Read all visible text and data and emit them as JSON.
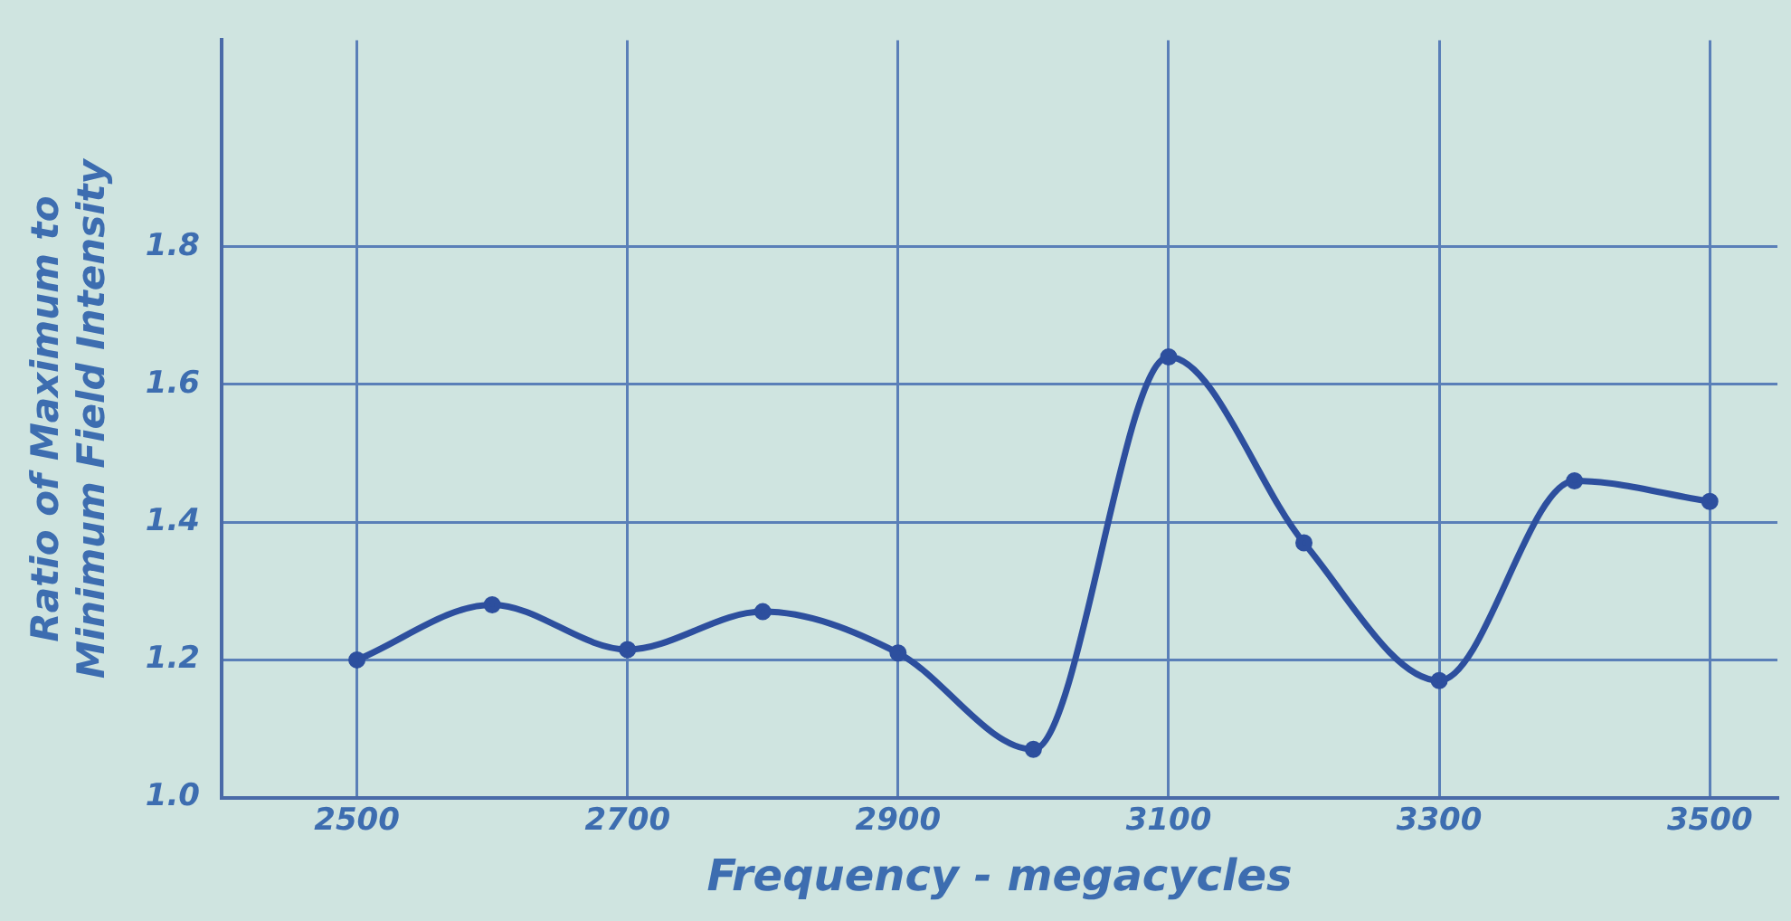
{
  "chart_data": {
    "type": "line",
    "xlabel": "Frequency - megacycles",
    "ylabel": "Ratio of Maximum to\nMinimum Field Intensity",
    "x": [
      2500,
      2600,
      2700,
      2800,
      2900,
      3000,
      3100,
      3200,
      3300,
      3400,
      3500
    ],
    "series": [
      {
        "color": "#2d4f9e",
        "values": [
          1.2,
          1.28,
          1.215,
          1.27,
          1.21,
          1.07,
          1.64,
          1.37,
          1.17,
          1.46,
          1.43
        ]
      }
    ],
    "xlim": [
      2400,
      3550
    ],
    "xticks": [
      2500,
      2700,
      2900,
      3100,
      3300,
      3500
    ],
    "ylim": [
      1.0,
      2.1
    ],
    "yticks": [
      {
        "value": 1.0,
        "label": "1.0"
      },
      {
        "value": 1.2,
        "label": "1.2"
      },
      {
        "value": 1.4,
        "label": "1.4"
      },
      {
        "value": 1.6,
        "label": "1.6"
      },
      {
        "value": 1.8,
        "label": "1.8"
      }
    ],
    "grid": true,
    "legend": false,
    "marker": "circle",
    "line_style": "solid"
  }
}
